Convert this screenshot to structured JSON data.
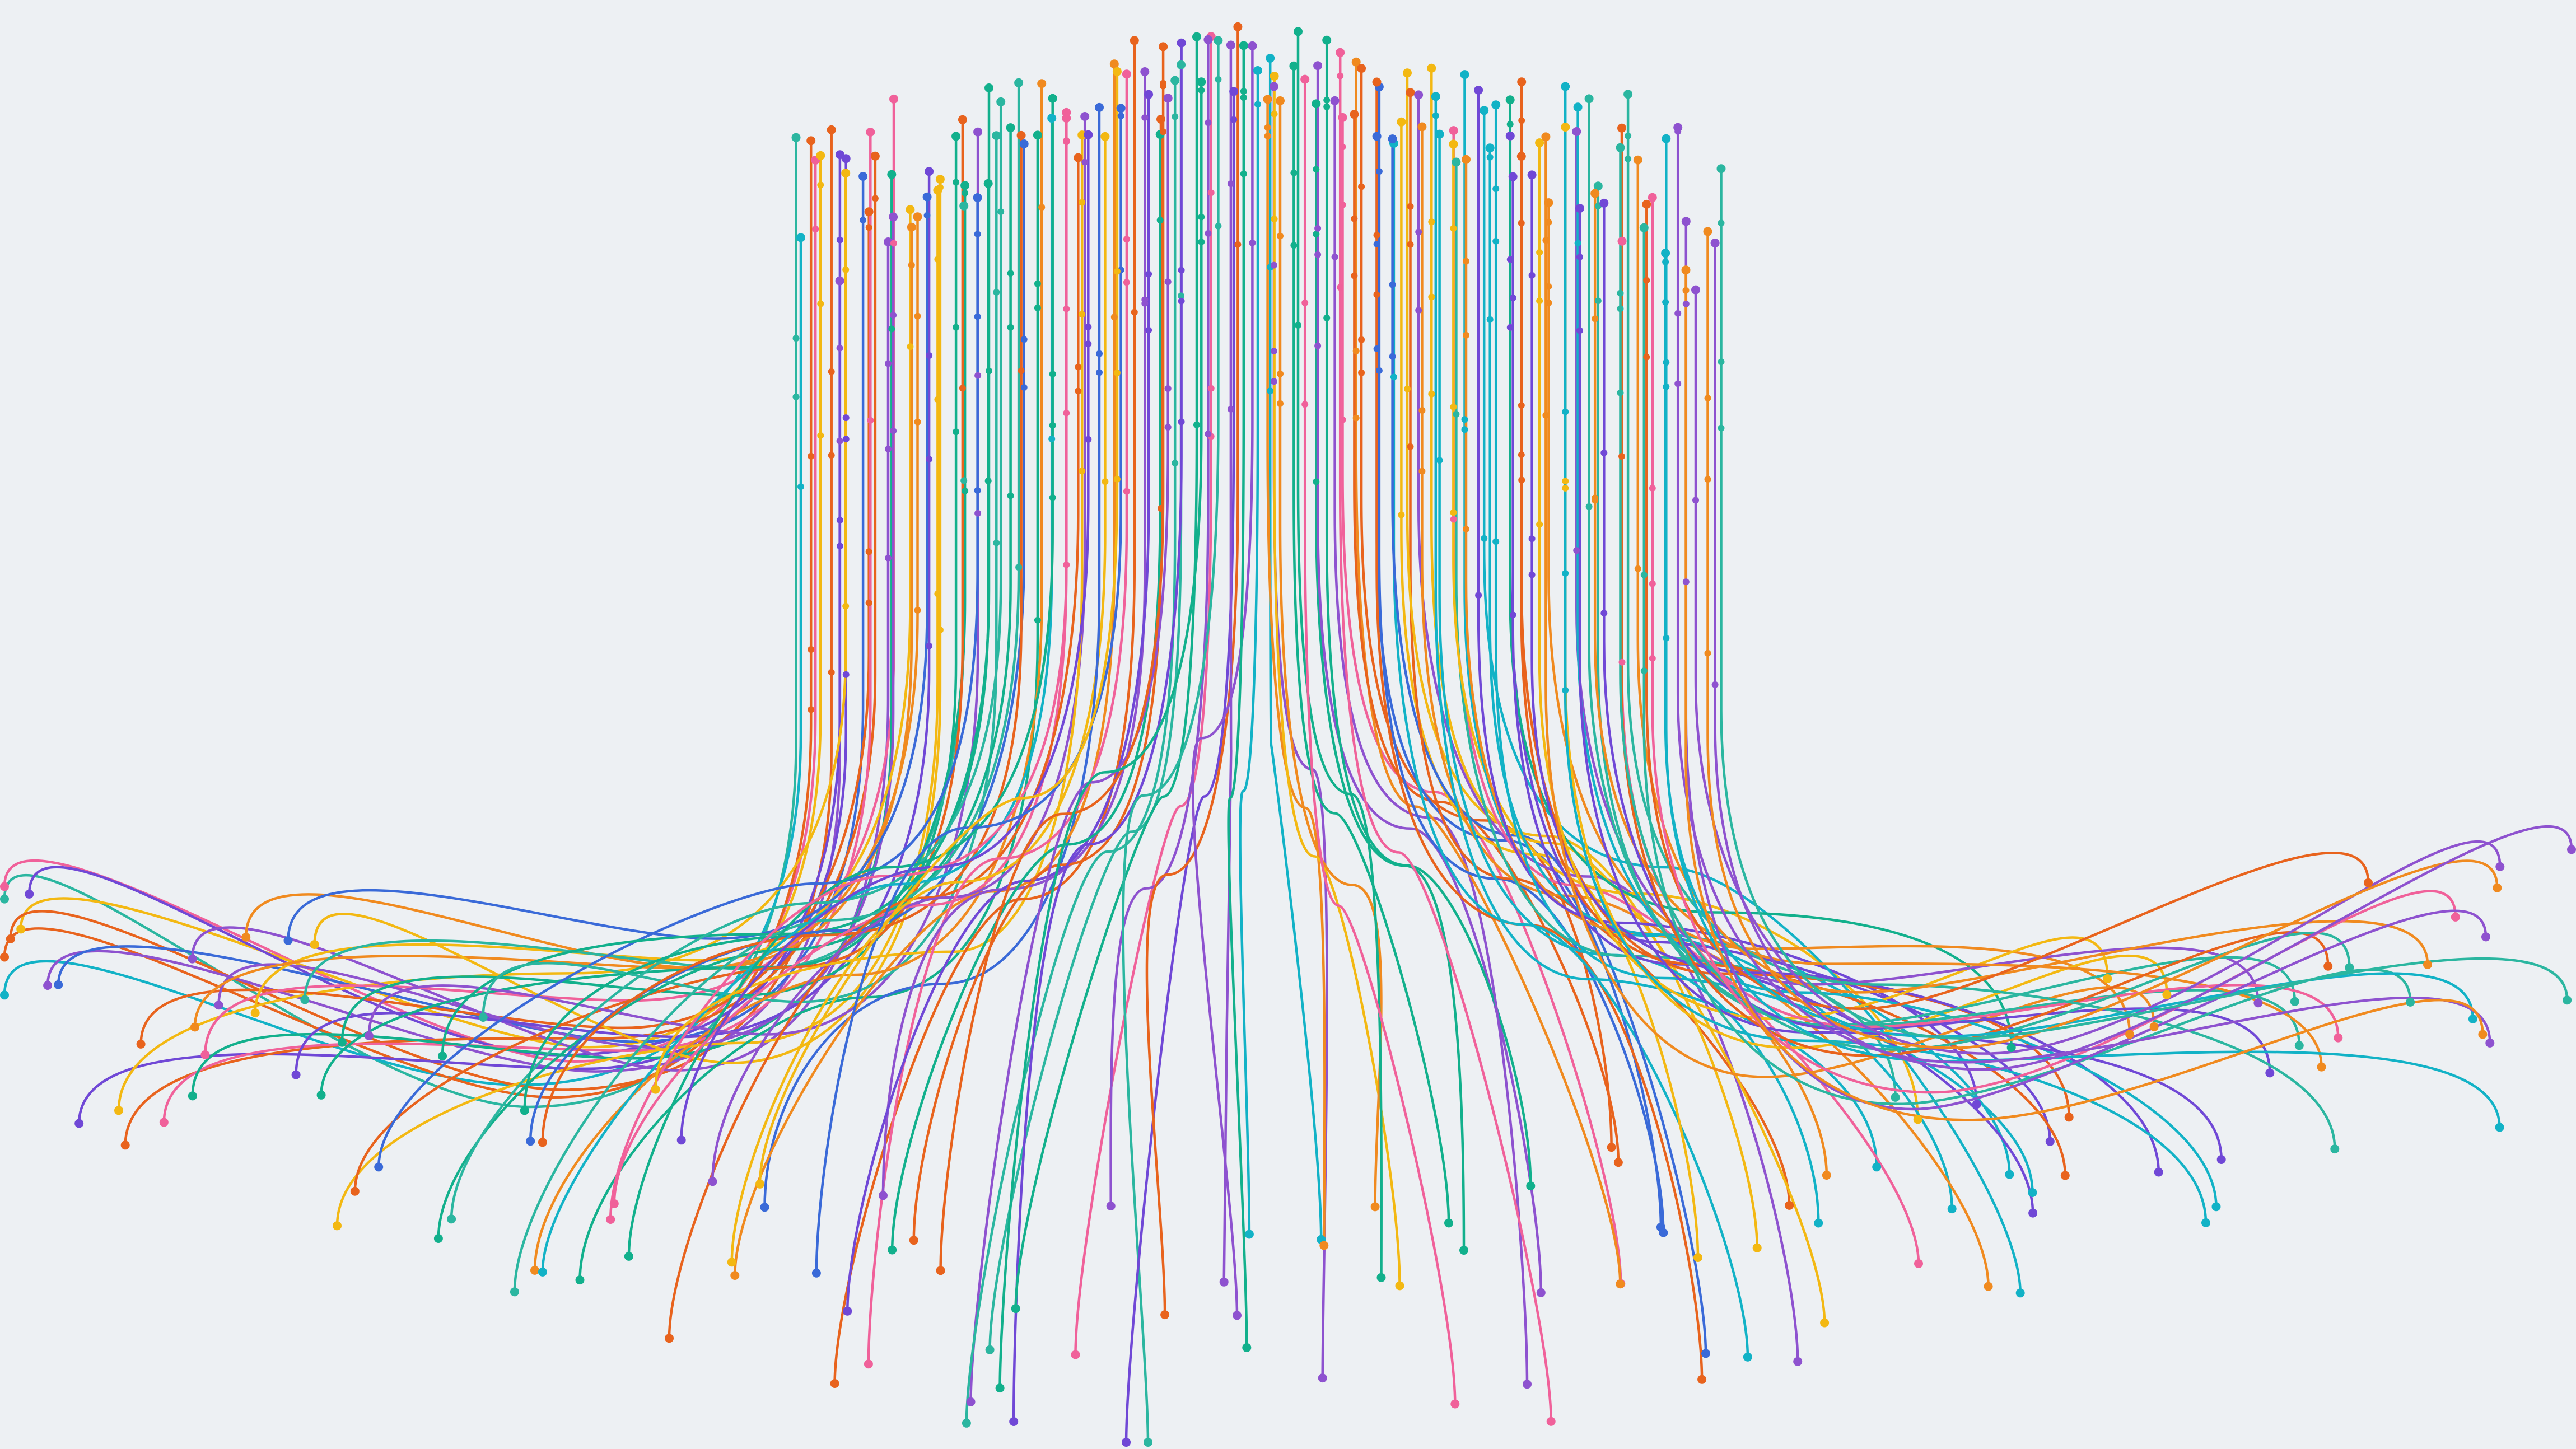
{
  "image": {
    "background": "#edf0f3",
    "palette": [
      "#7048d6",
      "#f0619a",
      "#e8631d",
      "#12b08c",
      "#f3b812",
      "#3a6ad8",
      "#12b2c6",
      "#2bb6a0",
      "#8e52cf",
      "#f08a1f"
    ],
    "style": "flowing lines with dot endpoints"
  }
}
